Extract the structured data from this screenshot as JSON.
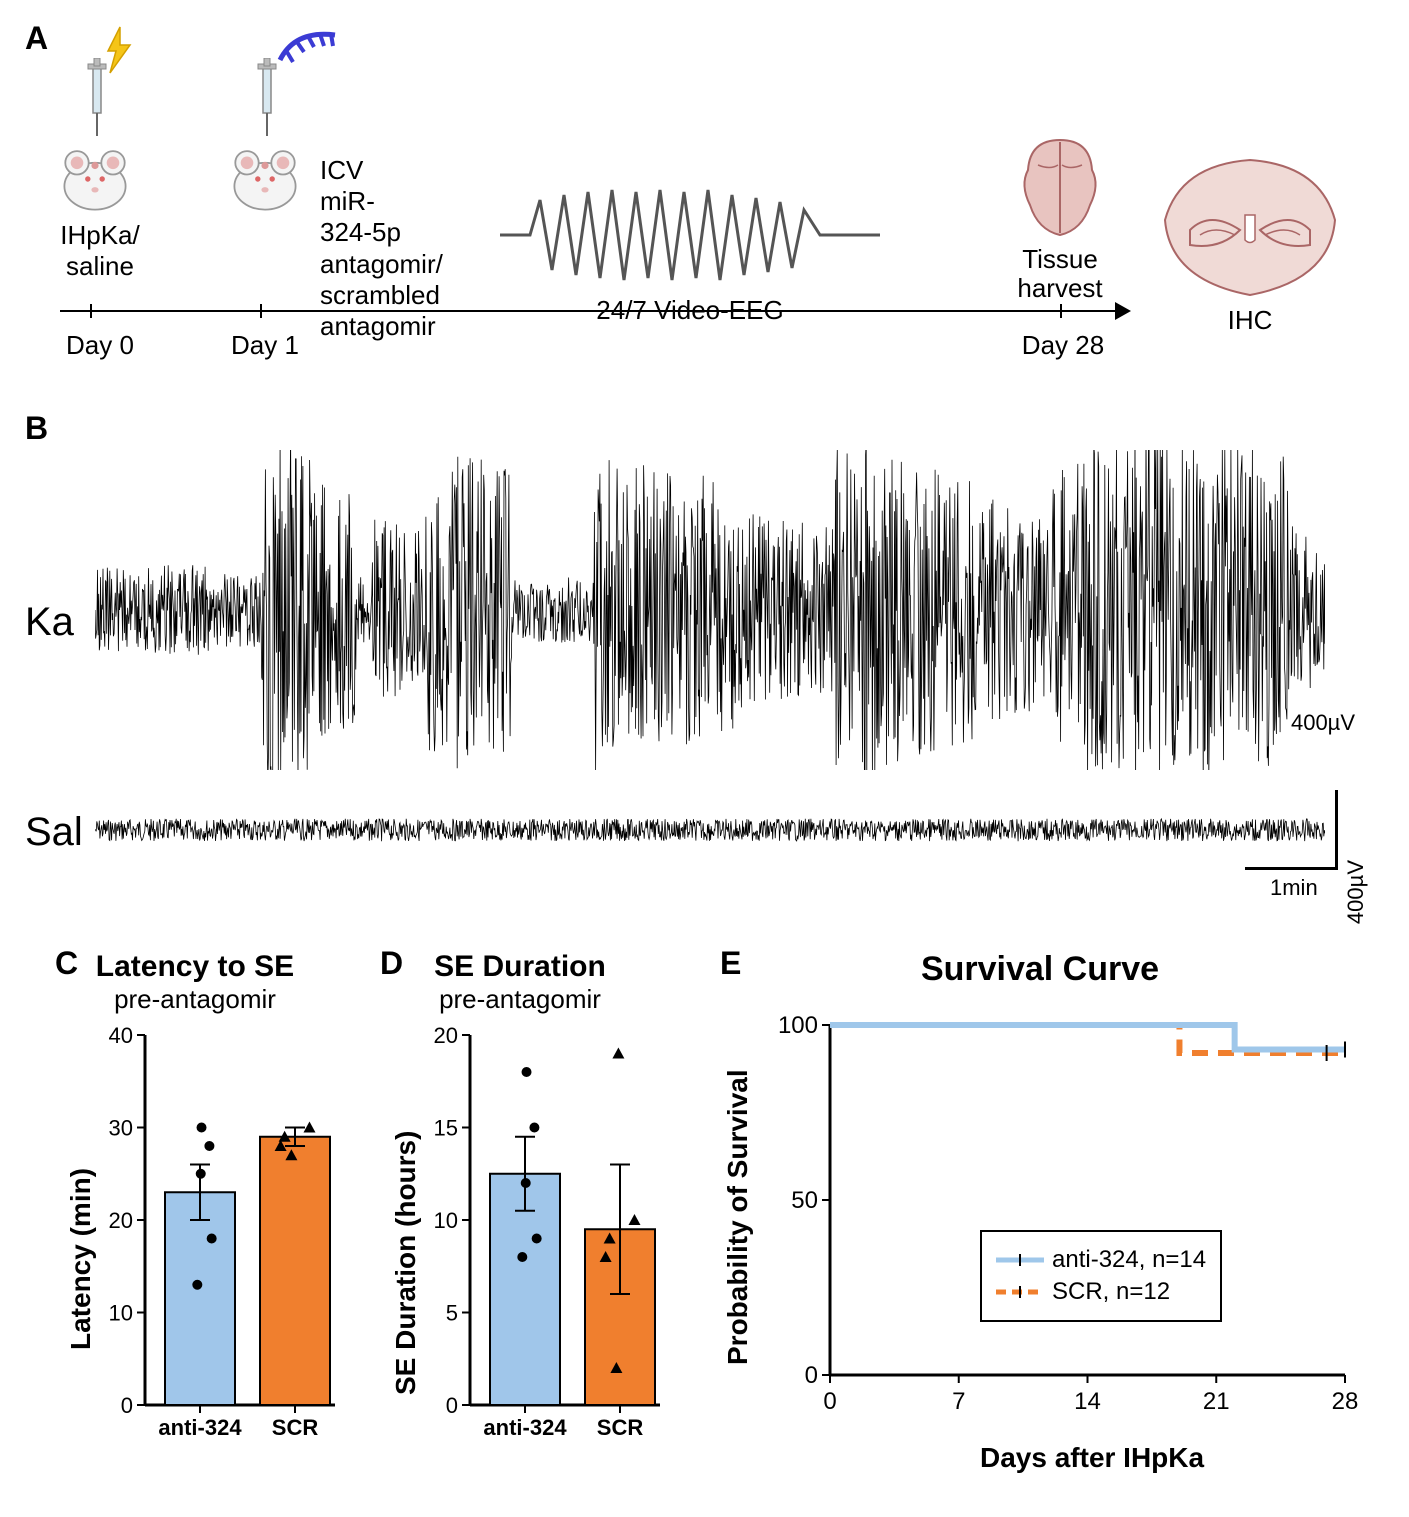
{
  "colors": {
    "blue": "#a0c6ea",
    "orange": "#f07f2e",
    "line_blue": "#9fc7ea",
    "line_orange": "#f07f2e",
    "mouse_body": "#f4f4f4",
    "mouse_outline": "#9a9a9a",
    "mouse_ear": "#e8b8b8",
    "brain_fill": "#e8c4c0",
    "brain_line": "#a66"
  },
  "panelA": {
    "label": "A",
    "day0": "Day 0",
    "day1": "Day 1",
    "day28": "Day 28",
    "cap0_l1": "IHpKa/",
    "cap0_l2": "saline",
    "cap1_l1": "ICV miR-324-5p",
    "cap1_l2": "antagomir/",
    "cap1_l3": "scrambled",
    "cap1_l4": "antagomir",
    "eeg_label": "24/7 Video-EEG",
    "tissue_l1": "Tissue",
    "tissue_l2": "harvest",
    "ihc": "IHC"
  },
  "panelB": {
    "label": "B",
    "ka": "Ka",
    "sal": "Sal",
    "scale_y": "400µV",
    "scale_x": "1min"
  },
  "panelC": {
    "label": "C",
    "title": "Latency to SE",
    "subtitle": "pre-antagomir",
    "ylabel": "Latency (min)",
    "ymax": 40,
    "yticks": [
      0,
      10,
      20,
      30,
      40
    ],
    "cats": [
      "anti-324",
      "SCR"
    ],
    "values": [
      23,
      29
    ],
    "errs": [
      3,
      1
    ],
    "points_anti": [
      13,
      18,
      25,
      28,
      30
    ],
    "points_scr": [
      27,
      28,
      29,
      30
    ],
    "bar_colors": [
      "#a0c6ea",
      "#f07f2e"
    ]
  },
  "panelD": {
    "label": "D",
    "title": "SE Duration",
    "subtitle": "pre-antagomir",
    "ylabel": "SE Duration (hours)",
    "ymax": 20,
    "yticks": [
      0,
      5,
      10,
      15,
      20
    ],
    "cats": [
      "anti-324",
      "SCR"
    ],
    "values": [
      12.5,
      9.5
    ],
    "errs": [
      2,
      3.5
    ],
    "points_anti": [
      8,
      9,
      12,
      15,
      18
    ],
    "points_scr": [
      2,
      8,
      9,
      10,
      19
    ],
    "bar_colors": [
      "#a0c6ea",
      "#f07f2e"
    ]
  },
  "panelE": {
    "label": "E",
    "title": "Survival Curve",
    "ylabel": "Probability of Survival",
    "xlabel": "Days after IHpKa",
    "xticks": [
      0,
      7,
      14,
      21,
      28
    ],
    "yticks": [
      0,
      50,
      100
    ],
    "legend": [
      {
        "label": "anti-324, n=14",
        "color": "#9fc7ea",
        "dash": false
      },
      {
        "label": "SCR, n=12",
        "color": "#f07f2e",
        "dash": true
      }
    ],
    "anti_steps": [
      [
        0,
        100
      ],
      [
        22,
        100
      ],
      [
        22,
        93
      ],
      [
        28,
        93
      ]
    ],
    "scr_steps": [
      [
        0,
        100
      ],
      [
        19,
        100
      ],
      [
        19,
        92
      ],
      [
        28,
        92
      ]
    ]
  }
}
